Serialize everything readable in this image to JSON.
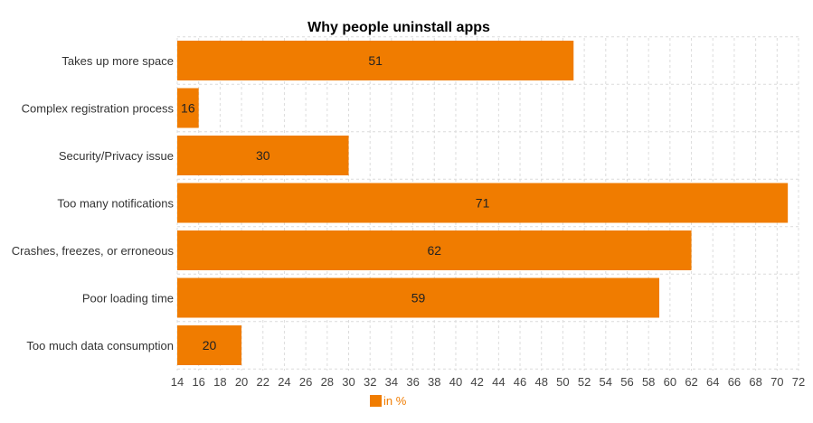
{
  "chart_data": {
    "type": "bar",
    "orientation": "horizontal",
    "title": "Why people uninstall apps",
    "categories": [
      "Takes up more space",
      "Complex registration process",
      "Security/Privacy issue",
      "Too many notifications",
      "Crashes, freezes, or erroneous",
      "Poor loading time",
      "Too much data consumption"
    ],
    "series": [
      {
        "name": "in %",
        "values": [
          51,
          16,
          30,
          71,
          62,
          59,
          20
        ],
        "color": "#f07c00"
      }
    ],
    "xlim": [
      14,
      72
    ],
    "x_ticks": [
      "14",
      "16",
      "18",
      "20",
      "22",
      "24",
      "26",
      "28",
      "30",
      "32",
      "34",
      "36",
      "38",
      "40",
      "42",
      "44",
      "46",
      "48",
      "50",
      "52",
      "54",
      "56",
      "58",
      "60",
      "62",
      "64",
      "66",
      "68",
      "70",
      "72"
    ],
    "grid": true,
    "legend_position": "bottom-center"
  }
}
